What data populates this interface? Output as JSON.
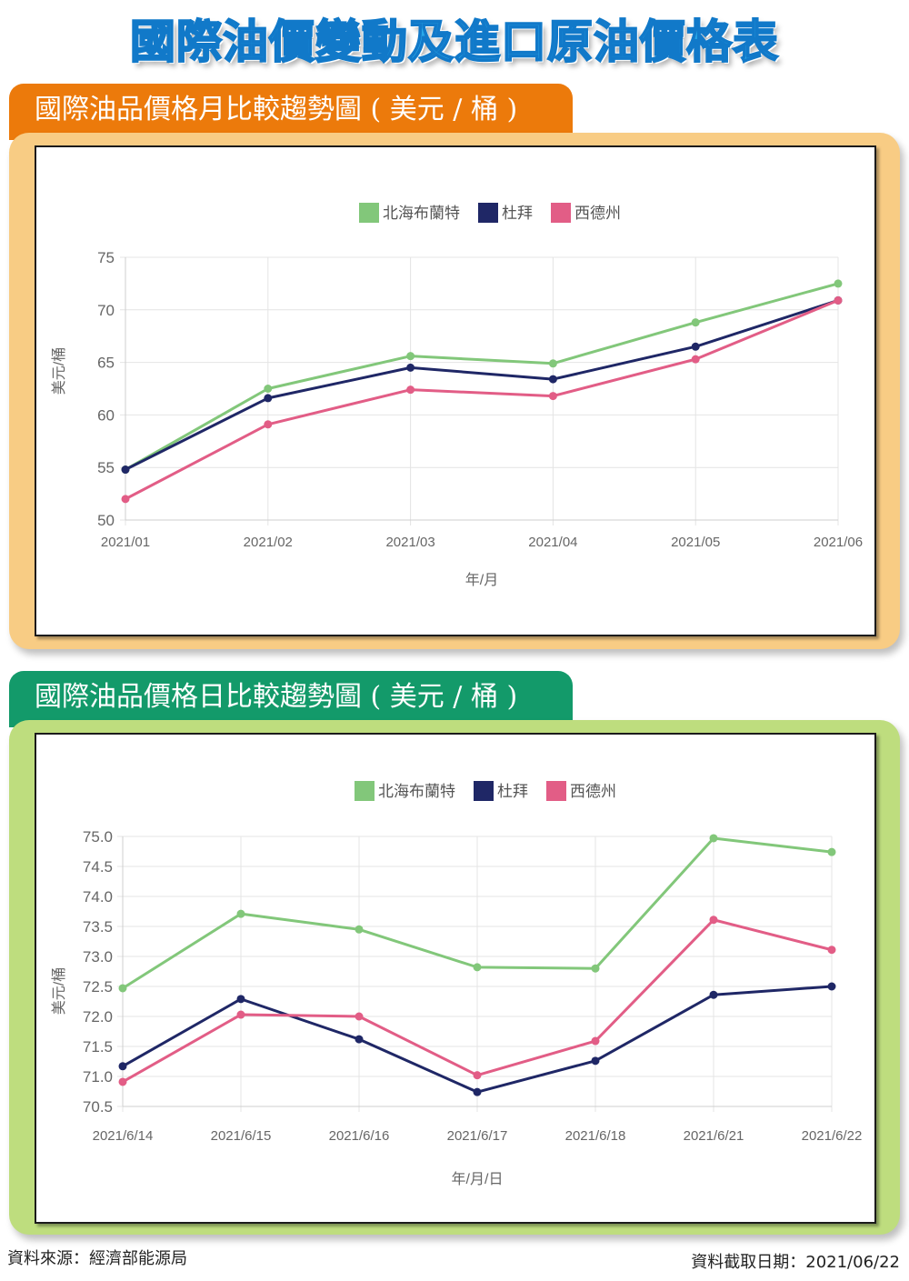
{
  "page": {
    "title": "國際油價變動及進口原油價格表",
    "source": "資料來源：經濟部能源局",
    "retrieved": "資料截取日期：2021/06/22"
  },
  "colors": {
    "title_blue": "#29a8e8",
    "monthly_tab": "#ec7a0b",
    "monthly_panel": "#f8cc84",
    "daily_tab": "#139a6a",
    "daily_panel": "#bedd7e",
    "series_brent": "#82c77a",
    "series_dubai": "#1f2766",
    "series_wti": "#e25d86"
  },
  "monthly": {
    "heading": "國際油品價格月比較趨勢圖 ( 美元 / 桶 )"
  },
  "daily": {
    "heading": "國際油品價格日比較趨勢圖 ( 美元 / 桶 )"
  },
  "chart_data": [
    {
      "type": "line",
      "title": "國際油品價格月比較趨勢圖 ( 美元 / 桶 )",
      "xlabel": "年/月",
      "ylabel": "美元/桶",
      "categories": [
        "2021/01",
        "2021/02",
        "2021/03",
        "2021/04",
        "2021/05",
        "2021/06"
      ],
      "yticks": [
        "75",
        "70",
        "65",
        "60",
        "55",
        "50"
      ],
      "ylim": [
        50,
        75
      ],
      "grid": true,
      "legend_position": "top",
      "series": [
        {
          "name": "北海布蘭特",
          "color": "#82c77a",
          "values": [
            54.8,
            62.5,
            65.6,
            64.9,
            68.8,
            72.5
          ]
        },
        {
          "name": "杜拜",
          "color": "#1f2766",
          "values": [
            54.8,
            61.6,
            64.5,
            63.4,
            66.5,
            70.9
          ]
        },
        {
          "name": "西德州",
          "color": "#e25d86",
          "values": [
            52.0,
            59.1,
            62.4,
            61.8,
            65.3,
            70.9
          ]
        }
      ]
    },
    {
      "type": "line",
      "title": "國際油品價格日比較趨勢圖 ( 美元 / 桶 )",
      "xlabel": "年/月/日",
      "ylabel": "美元/桶",
      "categories": [
        "2021/6/14",
        "2021/6/15",
        "2021/6/16",
        "2021/6/17",
        "2021/6/18",
        "2021/6/21",
        "2021/6/22"
      ],
      "yticks": [
        "75.0",
        "74.5",
        "74.0",
        "73.5",
        "73.0",
        "72.5",
        "72.0",
        "71.5",
        "71.0",
        "70.5"
      ],
      "ylim": [
        70.5,
        75.0
      ],
      "grid": true,
      "legend_position": "top",
      "series": [
        {
          "name": "北海布蘭特",
          "color": "#82c77a",
          "values": [
            72.47,
            73.71,
            73.45,
            72.82,
            72.8,
            74.97,
            74.74
          ]
        },
        {
          "name": "杜拜",
          "color": "#1f2766",
          "values": [
            71.17,
            72.29,
            71.62,
            70.74,
            71.26,
            72.36,
            72.5
          ]
        },
        {
          "name": "西德州",
          "color": "#e25d86",
          "values": [
            70.91,
            72.03,
            72.0,
            71.02,
            71.59,
            73.61,
            73.11
          ]
        }
      ]
    }
  ]
}
